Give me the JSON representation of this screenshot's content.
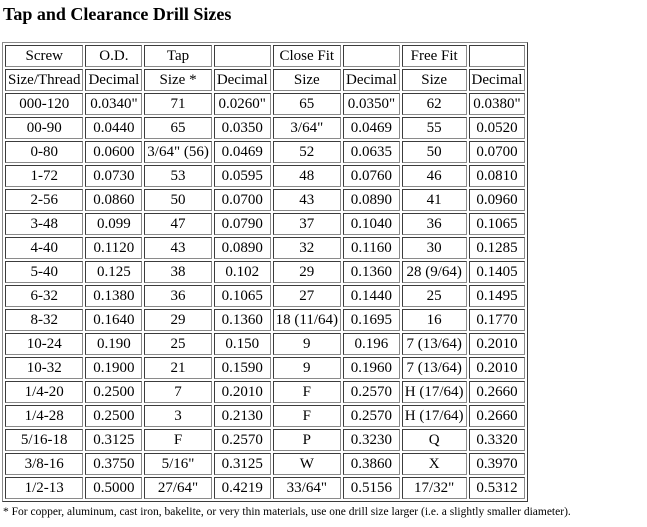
{
  "page": {
    "title": "Tap and Clearance Drill Sizes",
    "footnote": "* For copper, aluminum, cast iron, bakelite, or very thin materials, use one drill size larger (i.e. a slightly smaller diameter)."
  },
  "table": {
    "header_row_1": [
      "Screw",
      "O.D.",
      "Tap",
      "",
      "Close Fit",
      "",
      "Free Fit",
      ""
    ],
    "header_row_2": [
      "Size/Thread",
      "Decimal",
      "Size *",
      "Decimal",
      "Size",
      "Decimal",
      "Size",
      "Decimal"
    ],
    "rows": [
      [
        "000-120",
        "0.0340\"",
        "71",
        "0.0260\"",
        "65",
        "0.0350\"",
        "62",
        "0.0380\""
      ],
      [
        "00-90",
        "0.0440",
        "65",
        "0.0350",
        "3/64\"",
        "0.0469",
        "55",
        "0.0520"
      ],
      [
        "0-80",
        "0.0600",
        "3/64\" (56)",
        "0.0469",
        "52",
        "0.0635",
        "50",
        "0.0700"
      ],
      [
        "1-72",
        "0.0730",
        "53",
        "0.0595",
        "48",
        "0.0760",
        "46",
        "0.0810"
      ],
      [
        "2-56",
        "0.0860",
        "50",
        "0.0700",
        "43",
        "0.0890",
        "41",
        "0.0960"
      ],
      [
        "3-48",
        "0.099",
        "47",
        "0.0790",
        "37",
        "0.1040",
        "36",
        "0.1065"
      ],
      [
        "4-40",
        "0.1120",
        "43",
        "0.0890",
        "32",
        "0.1160",
        "30",
        "0.1285"
      ],
      [
        "5-40",
        "0.125",
        "38",
        "0.102",
        "29",
        "0.1360",
        "28 (9/64)",
        "0.1405"
      ],
      [
        "6-32",
        "0.1380",
        "36",
        "0.1065",
        "27",
        "0.1440",
        "25",
        "0.1495"
      ],
      [
        "8-32",
        "0.1640",
        "29",
        "0.1360",
        "18 (11/64)",
        "0.1695",
        "16",
        "0.1770"
      ],
      [
        "10-24",
        "0.190",
        "25",
        "0.150",
        "9",
        "0.196",
        "7 (13/64)",
        "0.2010"
      ],
      [
        "10-32",
        "0.1900",
        "21",
        "0.1590",
        "9",
        "0.1960",
        "7 (13/64)",
        "0.2010"
      ],
      [
        "1/4-20",
        "0.2500",
        "7",
        "0.2010",
        "F",
        "0.2570",
        "H (17/64)",
        "0.2660"
      ],
      [
        "1/4-28",
        "0.2500",
        "3",
        "0.2130",
        "F",
        "0.2570",
        "H (17/64)",
        "0.2660"
      ],
      [
        "5/16-18",
        "0.3125",
        "F",
        "0.2570",
        "P",
        "0.3230",
        "Q",
        "0.3320"
      ],
      [
        "3/8-16",
        "0.3750",
        "5/16\"",
        "0.3125",
        "W",
        "0.3860",
        "X",
        "0.3970"
      ],
      [
        "1/2-13",
        "0.5000",
        "27/64\"",
        "0.4219",
        "33/64\"",
        "0.5156",
        "17/32\"",
        "0.5312"
      ]
    ]
  }
}
